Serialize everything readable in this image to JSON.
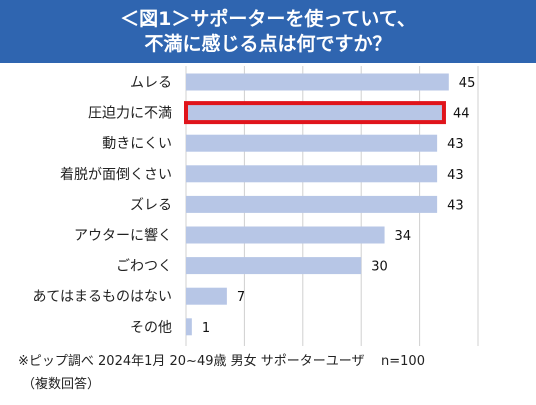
{
  "header": {
    "title_line1": "＜図1＞サポーターを使っていて、",
    "title_line2": "不満に感じる点は何ですか？"
  },
  "colors": {
    "header_bg": "#2f65b0",
    "bar": "#b7c6e6",
    "highlight_border": "#e0141b",
    "grid": "#d0d0d0"
  },
  "chart_data": {
    "type": "bar",
    "orientation": "horizontal",
    "categories": [
      "ムレる",
      "圧迫力に不満",
      "動きにくい",
      "着脱が面倒くさい",
      "ズレる",
      "アウターに響く",
      "ごわつく",
      "あてはまるものはない",
      "その他"
    ],
    "values": [
      45,
      44,
      43,
      43,
      43,
      34,
      30,
      7,
      1
    ],
    "highlighted": "圧迫力に不満",
    "xlim": [
      0,
      50
    ],
    "grid": true,
    "data_labels": true
  },
  "source": {
    "line1": "※ピップ調べ 2024年1月 20~49歳 男女 サポーターユーザ    n=100",
    "line2": "（複数回答）"
  }
}
